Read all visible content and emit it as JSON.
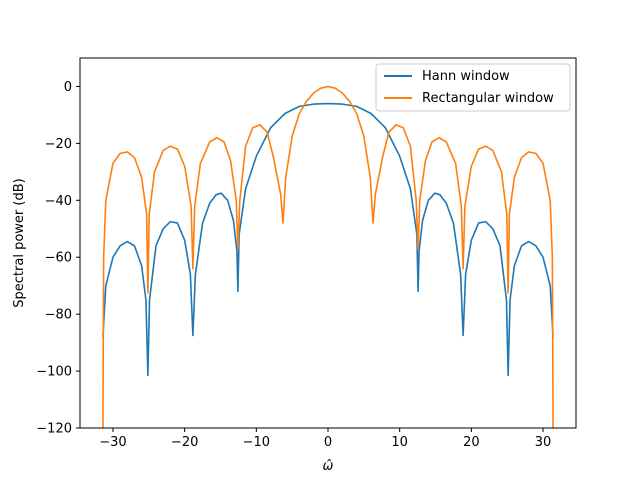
{
  "chart_data": {
    "type": "line",
    "title": "",
    "xlabel": "ω̂",
    "ylabel": "Spectral power (dB)",
    "xlim": [
      -34.6,
      34.6
    ],
    "ylim": [
      -120,
      10
    ],
    "xticks": [
      -30,
      -20,
      -10,
      0,
      10,
      20,
      30
    ],
    "yticks": [
      0,
      -20,
      -40,
      -60,
      -80,
      -100,
      -120
    ],
    "xtick_labels": [
      "−30",
      "−20",
      "−10",
      "0",
      "10",
      "20",
      "30"
    ],
    "ytick_labels": [
      "0",
      "−20",
      "−40",
      "−60",
      "−80",
      "−100",
      "−120"
    ],
    "legend_position": "top-right",
    "series": [
      {
        "name": "Hann window",
        "color": "#1f77b4",
        "x": [
          -31.4,
          -31.0,
          -30.0,
          -29.0,
          -28.0,
          -27.0,
          -26.0,
          -25.4,
          -25.13,
          -24.9,
          -24.0,
          -23.0,
          -22.0,
          -21.0,
          -20.0,
          -19.2,
          -18.85,
          -18.5,
          -17.5,
          -16.5,
          -15.6,
          -14.9,
          -14.0,
          -13.2,
          -12.7,
          -12.57,
          -12.4,
          -11.5,
          -10.0,
          -8.0,
          -6.0,
          -4.0,
          -2.0,
          0.0,
          2.0,
          4.0,
          6.0,
          8.0,
          10.0,
          11.5,
          12.4,
          12.57,
          12.7,
          13.2,
          14.0,
          14.9,
          15.6,
          16.5,
          17.5,
          18.5,
          18.85,
          19.2,
          20.0,
          21.0,
          22.0,
          23.0,
          24.0,
          24.9,
          25.13,
          25.4,
          26.0,
          27.0,
          28.0,
          29.0,
          30.0,
          31.0,
          31.4
        ],
        "values": [
          -88.0,
          -70.0,
          -60.0,
          -56.0,
          -54.5,
          -56.0,
          -63.0,
          -75.0,
          -101.5,
          -75.0,
          -56.0,
          -50.0,
          -47.5,
          -48.0,
          -54.0,
          -66.0,
          -87.5,
          -66.0,
          -48.0,
          -41.0,
          -38.0,
          -37.5,
          -40.0,
          -47.0,
          -58.0,
          -72.0,
          -52.0,
          -36.0,
          -24.5,
          -14.5,
          -9.5,
          -7.0,
          -6.2,
          -6.0,
          -6.2,
          -7.0,
          -9.5,
          -14.5,
          -24.5,
          -36.0,
          -52.0,
          -72.0,
          -58.0,
          -47.0,
          -40.0,
          -37.5,
          -38.0,
          -41.0,
          -48.0,
          -66.0,
          -87.5,
          -66.0,
          -54.0,
          -48.0,
          -47.5,
          -50.0,
          -56.0,
          -75.0,
          -101.5,
          -75.0,
          -63.0,
          -56.0,
          -54.5,
          -56.0,
          -60.0,
          -70.0,
          -88.0
        ]
      },
      {
        "name": "Rectangular window",
        "color": "#ff7f0e",
        "x": [
          -31.4,
          -31.3,
          -31.0,
          -30.0,
          -29.0,
          -28.0,
          -27.0,
          -26.0,
          -25.3,
          -25.13,
          -24.95,
          -24.2,
          -23.0,
          -22.0,
          -21.0,
          -20.0,
          -19.1,
          -18.85,
          -18.6,
          -17.8,
          -16.5,
          -15.5,
          -14.5,
          -13.6,
          -12.8,
          -12.57,
          -12.3,
          -11.5,
          -10.5,
          -9.5,
          -8.5,
          -7.6,
          -6.6,
          -6.28,
          -5.9,
          -5.0,
          -4.0,
          -3.0,
          -2.0,
          -1.0,
          0.0,
          1.0,
          2.0,
          3.0,
          4.0,
          5.0,
          5.9,
          6.28,
          6.6,
          7.6,
          8.5,
          9.5,
          10.5,
          11.5,
          12.3,
          12.57,
          12.8,
          13.6,
          14.5,
          15.5,
          16.5,
          17.8,
          18.6,
          18.85,
          19.1,
          20.0,
          21.0,
          22.0,
          23.0,
          24.2,
          24.95,
          25.13,
          25.3,
          26.0,
          27.0,
          28.0,
          29.0,
          30.0,
          31.0,
          31.3,
          31.4
        ],
        "values": [
          -120.0,
          -60.0,
          -40.0,
          -27.0,
          -23.5,
          -23.0,
          -25.0,
          -32.0,
          -45.0,
          -72.5,
          -45.0,
          -30.0,
          -22.5,
          -21.0,
          -22.0,
          -28.0,
          -42.0,
          -64.0,
          -42.0,
          -27.0,
          -19.5,
          -18.0,
          -19.5,
          -26.0,
          -40.0,
          -57.0,
          -40.0,
          -21.0,
          -14.5,
          -13.5,
          -16.0,
          -25.0,
          -38.0,
          -48.0,
          -32.0,
          -17.5,
          -9.5,
          -5.2,
          -2.3,
          -0.6,
          0.0,
          -0.6,
          -2.3,
          -5.2,
          -9.5,
          -17.5,
          -32.0,
          -48.0,
          -38.0,
          -25.0,
          -16.0,
          -13.5,
          -14.5,
          -21.0,
          -40.0,
          -57.0,
          -40.0,
          -26.0,
          -19.5,
          -18.0,
          -19.5,
          -27.0,
          -42.0,
          -64.0,
          -42.0,
          -28.0,
          -22.0,
          -21.0,
          -22.5,
          -30.0,
          -45.0,
          -72.5,
          -45.0,
          -32.0,
          -25.0,
          -23.0,
          -23.5,
          -27.0,
          -40.0,
          -60.0,
          -120.0
        ]
      }
    ]
  }
}
